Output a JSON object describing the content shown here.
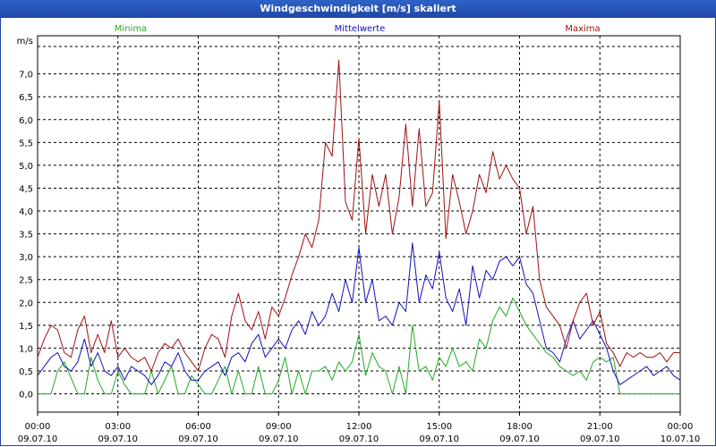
{
  "window": {
    "title": "Windgeschwindigkeit [m/s] skaliert"
  },
  "colors": {
    "minima": "#22aa22",
    "mittel": "#1111bb",
    "maxima": "#a01010",
    "title_bg": "#2a56bd"
  },
  "chart_data": {
    "type": "line",
    "title": "Windgeschwindigkeit [m/s] skaliert",
    "ylabel": "m/s",
    "xlabel": "",
    "ylim": [
      -0.4,
      7.6
    ],
    "y_ticks": [
      {
        "value": 0.0,
        "label": "0,0"
      },
      {
        "value": 0.5,
        "label": "0,5"
      },
      {
        "value": 1.0,
        "label": "1,0"
      },
      {
        "value": 1.5,
        "label": "1,5"
      },
      {
        "value": 2.0,
        "label": "2,0"
      },
      {
        "value": 2.5,
        "label": "2,5"
      },
      {
        "value": 3.0,
        "label": "3,0"
      },
      {
        "value": 3.5,
        "label": "3,5"
      },
      {
        "value": 4.0,
        "label": "4,0"
      },
      {
        "value": 4.5,
        "label": "4,5"
      },
      {
        "value": 5.0,
        "label": "5,0"
      },
      {
        "value": 5.5,
        "label": "5,5"
      },
      {
        "value": 6.0,
        "label": "6,0"
      },
      {
        "value": 6.5,
        "label": "6,5"
      },
      {
        "value": 7.0,
        "label": "7,0"
      }
    ],
    "xlim": [
      0,
      24
    ],
    "x_ticks": [
      {
        "hour": 0,
        "time": "00:00",
        "date": "09.07.10"
      },
      {
        "hour": 3,
        "time": "03:00",
        "date": "09.07.10"
      },
      {
        "hour": 6,
        "time": "06:00",
        "date": "09.07.10"
      },
      {
        "hour": 9,
        "time": "09:00",
        "date": "09.07.10"
      },
      {
        "hour": 12,
        "time": "12:00",
        "date": "09.07.10"
      },
      {
        "hour": 15,
        "time": "15:00",
        "date": "09.07.10"
      },
      {
        "hour": 18,
        "time": "18:00",
        "date": "09.07.10"
      },
      {
        "hour": 21,
        "time": "21:00",
        "date": "09.07.10"
      },
      {
        "hour": 24,
        "time": "00:00",
        "date": "10.07.10"
      }
    ],
    "series": [
      {
        "name": "Minima",
        "x": [
          0,
          0.5,
          0.75,
          1,
          1.5,
          1.75,
          2,
          2.25,
          2.5,
          2.75,
          3,
          3.25,
          3.5,
          4,
          4.25,
          4.5,
          5,
          5.25,
          5.5,
          5.75,
          6,
          6.25,
          6.5,
          6.75,
          7,
          7.25,
          7.5,
          7.75,
          8,
          8.25,
          8.5,
          8.75,
          9,
          9.25,
          9.5,
          9.75,
          10,
          10.25,
          10.5,
          10.75,
          11,
          11.25,
          11.5,
          11.75,
          12,
          12.25,
          12.5,
          12.75,
          13,
          13.25,
          13.5,
          13.75,
          14,
          14.25,
          14.5,
          14.75,
          15,
          15.25,
          15.5,
          15.75,
          16,
          16.25,
          16.5,
          16.75,
          17,
          17.25,
          17.5,
          17.75,
          18,
          18.25,
          18.5,
          18.75,
          19,
          19.25,
          19.5,
          19.75,
          20,
          20.25,
          20.5,
          20.75,
          21,
          21.25,
          21.5,
          21.75,
          22,
          22.25,
          22.5,
          23,
          23.5,
          24
        ],
        "values": [
          0.0,
          0.0,
          0.5,
          0.7,
          0.0,
          0.0,
          0.8,
          0.3,
          0.0,
          0.0,
          0.5,
          0.2,
          0.0,
          0.0,
          0.5,
          0.0,
          0.6,
          0.0,
          0.0,
          0.4,
          0.2,
          0.0,
          0.0,
          0.3,
          0.6,
          0.0,
          0.5,
          0.0,
          0.0,
          0.6,
          0.0,
          0.0,
          0.3,
          0.8,
          0.0,
          0.5,
          0.0,
          0.5,
          0.5,
          0.6,
          0.3,
          0.7,
          0.5,
          0.7,
          1.3,
          0.4,
          0.9,
          0.6,
          0.5,
          0.0,
          0.6,
          0.0,
          1.5,
          0.5,
          0.6,
          0.3,
          0.8,
          0.6,
          1.0,
          0.6,
          0.7,
          0.5,
          1.2,
          1.0,
          1.6,
          1.9,
          1.7,
          2.1,
          1.8,
          1.5,
          1.3,
          1.1,
          0.9,
          0.8,
          0.6,
          0.5,
          0.4,
          0.5,
          0.3,
          0.7,
          0.8,
          0.7,
          0.8,
          0.0,
          0.0,
          0.0,
          0.0,
          0.0,
          0.0,
          0.0
        ]
      },
      {
        "name": "Mittelwerte",
        "x": [
          0,
          0.25,
          0.5,
          0.75,
          1,
          1.25,
          1.5,
          1.75,
          2,
          2.25,
          2.5,
          2.75,
          3,
          3.25,
          3.5,
          3.75,
          4,
          4.25,
          4.5,
          4.75,
          5,
          5.25,
          5.5,
          5.75,
          6,
          6.25,
          6.5,
          6.75,
          7,
          7.25,
          7.5,
          7.75,
          8,
          8.25,
          8.5,
          8.75,
          9,
          9.25,
          9.5,
          9.75,
          10,
          10.25,
          10.5,
          10.75,
          11,
          11.25,
          11.5,
          11.75,
          12,
          12.25,
          12.5,
          12.75,
          13,
          13.25,
          13.5,
          13.75,
          14,
          14.25,
          14.5,
          14.75,
          15,
          15.25,
          15.5,
          15.75,
          16,
          16.25,
          16.5,
          16.75,
          17,
          17.25,
          17.5,
          17.75,
          18,
          18.25,
          18.5,
          18.75,
          19,
          19.25,
          19.5,
          19.75,
          20,
          20.25,
          20.5,
          20.75,
          21,
          21.25,
          21.5,
          21.75,
          22,
          22.25,
          22.5,
          22.75,
          23,
          23.25,
          23.5,
          23.75,
          24
        ],
        "values": [
          0.4,
          0.6,
          0.8,
          0.9,
          0.6,
          0.5,
          0.7,
          1.2,
          0.6,
          0.9,
          0.5,
          0.4,
          0.6,
          0.3,
          0.6,
          0.5,
          0.4,
          0.2,
          0.4,
          0.7,
          0.6,
          0.9,
          0.5,
          0.3,
          0.3,
          0.5,
          0.6,
          0.7,
          0.4,
          0.8,
          0.9,
          0.7,
          1.1,
          1.3,
          0.8,
          1.0,
          1.2,
          1.0,
          1.4,
          1.6,
          1.3,
          1.8,
          1.5,
          1.7,
          2.2,
          1.8,
          2.5,
          2.0,
          3.2,
          2.0,
          2.5,
          1.6,
          1.7,
          1.5,
          2.0,
          1.8,
          3.3,
          2.0,
          2.6,
          2.3,
          3.1,
          2.1,
          1.8,
          2.3,
          1.5,
          2.8,
          2.1,
          2.7,
          2.5,
          2.9,
          3.0,
          2.8,
          3.0,
          2.4,
          2.2,
          1.6,
          1.0,
          0.9,
          0.7,
          1.2,
          1.6,
          1.2,
          1.4,
          1.6,
          1.3,
          1.0,
          0.5,
          0.2,
          0.3,
          0.4,
          0.5,
          0.6,
          0.4,
          0.5,
          0.6,
          0.4,
          0.3
        ]
      },
      {
        "name": "Maxima",
        "x": [
          0,
          0.25,
          0.5,
          0.75,
          1,
          1.25,
          1.5,
          1.75,
          2,
          2.25,
          2.5,
          2.75,
          3,
          3.25,
          3.5,
          3.75,
          4,
          4.25,
          4.5,
          4.75,
          5,
          5.25,
          5.5,
          5.75,
          6,
          6.25,
          6.5,
          6.75,
          7,
          7.25,
          7.5,
          7.75,
          8,
          8.25,
          8.5,
          8.75,
          9,
          9.25,
          9.5,
          9.75,
          10,
          10.25,
          10.5,
          10.75,
          11,
          11.25,
          11.5,
          11.75,
          12,
          12.25,
          12.5,
          12.75,
          13,
          13.25,
          13.5,
          13.75,
          14,
          14.25,
          14.5,
          14.75,
          15,
          15.25,
          15.5,
          15.75,
          16,
          16.25,
          16.5,
          16.75,
          17,
          17.25,
          17.5,
          17.75,
          18,
          18.25,
          18.5,
          18.75,
          19,
          19.25,
          19.5,
          19.75,
          20,
          20.25,
          20.5,
          20.75,
          21,
          21.25,
          21.5,
          21.75,
          22,
          22.25,
          22.5,
          22.75,
          23,
          23.25,
          23.5,
          23.75,
          24
        ],
        "values": [
          0.8,
          1.2,
          1.5,
          1.4,
          0.9,
          0.8,
          1.4,
          1.7,
          0.9,
          1.3,
          0.9,
          1.6,
          0.8,
          1.0,
          0.8,
          0.7,
          0.8,
          0.5,
          0.9,
          1.1,
          1.0,
          1.2,
          0.9,
          0.7,
          0.5,
          1.0,
          1.3,
          1.2,
          0.8,
          1.7,
          2.2,
          1.6,
          1.4,
          1.8,
          1.2,
          1.9,
          1.7,
          2.1,
          2.6,
          3.0,
          3.5,
          3.2,
          3.8,
          5.5,
          5.2,
          7.3,
          4.2,
          3.8,
          5.6,
          3.5,
          4.8,
          4.1,
          4.8,
          3.5,
          4.3,
          5.9,
          4.1,
          5.8,
          4.1,
          4.4,
          6.4,
          3.4,
          4.8,
          4.2,
          3.5,
          4.0,
          4.8,
          4.4,
          5.3,
          4.7,
          5.0,
          4.7,
          4.5,
          3.5,
          4.1,
          2.5,
          1.9,
          1.7,
          1.5,
          1.0,
          1.6,
          2.0,
          2.2,
          1.5,
          1.8,
          1.1,
          0.9,
          0.6,
          0.9,
          0.8,
          0.9,
          0.8,
          0.8,
          0.9,
          0.7,
          0.9,
          0.9
        ]
      }
    ]
  }
}
